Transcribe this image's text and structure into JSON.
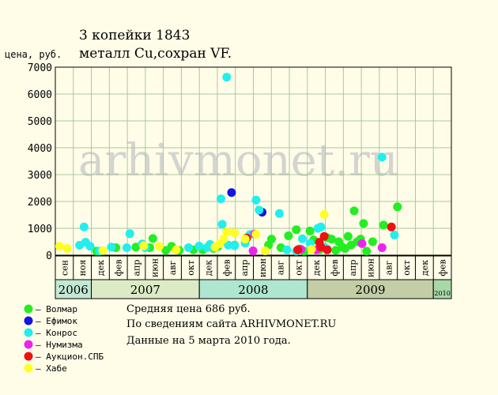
{
  "header": {
    "title_line1": "3 копейки 1843",
    "title_line2": "металл Cu,сохран VF.",
    "ylabel": "цена, руб."
  },
  "watermark": "arhivmonet.ru",
  "info": {
    "avg": "Средняя цена 686 руб.",
    "source": "По сведениям сайта ARHIVMONET.RU",
    "date": "Данные на 5 марта 2010 года."
  },
  "colors": {
    "Волмар": "#22ee22",
    "Ефимок": "#1414e6",
    "Конрос": "#22eeee",
    "Нумизма": "#ee22ee",
    "Аукцион.СПБ": "#ee1111",
    "Хабе": "#ffff22"
  },
  "chart_data": {
    "type": "scatter",
    "ylim": [
      0,
      7000
    ],
    "yticks": [
      0,
      1000,
      2000,
      3000,
      4000,
      5000,
      6000,
      7000
    ],
    "grid": true,
    "x_axis": {
      "months": [
        "сен",
        "ноя",
        "дек",
        "фев",
        "апр",
        "июн",
        "авг",
        "окт",
        "дек",
        "фев",
        "апр",
        "июн",
        "авг",
        "окт",
        "дек",
        "фев",
        "апр",
        "июн",
        "авг",
        "окт",
        "дек",
        "фев"
      ],
      "years": [
        {
          "label": "2006",
          "color": "#c3e8d3"
        },
        {
          "label": "2007",
          "color": "#dcebc6"
        },
        {
          "label": "2008",
          "color": "#aee6cf"
        },
        {
          "label": "2009",
          "color": "#c3cea6"
        },
        {
          "label": "2010",
          "color": "#a8d8a8"
        }
      ]
    },
    "series": [
      {
        "name": "Волмар",
        "points": [
          [
            "2007-01-15",
            150
          ],
          [
            "2007-03-20",
            280
          ],
          [
            "2007-05-25",
            300
          ],
          [
            "2007-07-10",
            280
          ],
          [
            "2007-07-20",
            620
          ],
          [
            "2007-09-01",
            180
          ],
          [
            "2007-09-20",
            330
          ],
          [
            "2007-10-15",
            180
          ],
          [
            "2007-12-01",
            200
          ],
          [
            "2008-01-01",
            200
          ],
          [
            "2008-02-05",
            250
          ],
          [
            "2008-02-20",
            320
          ],
          [
            "2008-04-15",
            370
          ],
          [
            "2008-08-05",
            380
          ],
          [
            "2008-08-15",
            600
          ],
          [
            "2008-09-15",
            280
          ],
          [
            "2008-10-10",
            720
          ],
          [
            "2008-11-05",
            950
          ],
          [
            "2008-11-15",
            230
          ],
          [
            "2008-12-01",
            150
          ],
          [
            "2008-12-20",
            900
          ],
          [
            "2009-01-01",
            570
          ],
          [
            "2009-01-20",
            200
          ],
          [
            "2009-02-15",
            650
          ],
          [
            "2009-03-01",
            600
          ],
          [
            "2009-03-15",
            180
          ],
          [
            "2009-03-25",
            500
          ],
          [
            "2009-04-05",
            300
          ],
          [
            "2009-04-15",
            250
          ],
          [
            "2009-04-25",
            700
          ],
          [
            "2009-05-05",
            380
          ],
          [
            "2009-05-15",
            1650
          ],
          [
            "2009-05-25",
            500
          ],
          [
            "2009-06-05",
            600
          ],
          [
            "2009-06-15",
            1180
          ],
          [
            "2009-06-25",
            150
          ],
          [
            "2009-07-15",
            500
          ],
          [
            "2009-08-20",
            1120
          ],
          [
            "2009-10-05",
            1800
          ]
        ]
      },
      {
        "name": "Ефимок",
        "points": [
          [
            "2008-04-05",
            2330
          ],
          [
            "2008-07-15",
            1600
          ]
        ]
      },
      {
        "name": "Конрос",
        "points": [
          [
            "2006-11-20",
            370
          ],
          [
            "2006-12-05",
            1050
          ],
          [
            "2006-12-10",
            480
          ],
          [
            "2006-12-25",
            330
          ],
          [
            "2007-01-25",
            150
          ],
          [
            "2007-03-05",
            300
          ],
          [
            "2007-04-25",
            280
          ],
          [
            "2007-05-05",
            800
          ],
          [
            "2007-06-15",
            420
          ],
          [
            "2007-06-25",
            280
          ],
          [
            "2007-11-15",
            280
          ],
          [
            "2007-12-20",
            340
          ],
          [
            "2008-01-15",
            280
          ],
          [
            "2008-01-25",
            400
          ],
          [
            "2008-02-05",
            300
          ],
          [
            "2008-03-01",
            2100
          ],
          [
            "2008-03-05",
            1150
          ],
          [
            "2008-03-20",
            6630
          ],
          [
            "2008-03-25",
            380
          ],
          [
            "2008-04-15",
            350
          ],
          [
            "2008-05-20",
            450
          ],
          [
            "2008-06-05",
            770
          ],
          [
            "2008-06-25",
            2050
          ],
          [
            "2008-07-05",
            1680
          ],
          [
            "2008-09-10",
            1550
          ],
          [
            "2008-10-05",
            200
          ],
          [
            "2008-11-05",
            150
          ],
          [
            "2008-11-25",
            610
          ],
          [
            "2008-12-20",
            440
          ],
          [
            "2009-01-15",
            1000
          ],
          [
            "2009-01-25",
            1050
          ],
          [
            "2009-02-05",
            300
          ],
          [
            "2009-02-15",
            230
          ],
          [
            "2009-08-15",
            3650
          ],
          [
            "2009-09-25",
            750
          ]
        ]
      },
      {
        "name": "Нумизма",
        "points": [
          [
            "2008-06-15",
            160
          ],
          [
            "2008-06-20",
            790
          ],
          [
            "2008-11-20",
            220
          ],
          [
            "2009-01-10",
            200
          ],
          [
            "2009-06-10",
            430
          ],
          [
            "2009-08-15",
            280
          ]
        ]
      },
      {
        "name": "Аукцион.СПБ",
        "points": [
          [
            "2008-05-25",
            640
          ],
          [
            "2008-11-10",
            200
          ],
          [
            "2009-01-20",
            480
          ],
          [
            "2009-01-25",
            300
          ],
          [
            "2009-02-05",
            700
          ],
          [
            "2009-02-15",
            200
          ],
          [
            "2009-09-15",
            1050
          ]
        ]
      },
      {
        "name": "Хабе",
        "points": [
          [
            "2006-09-15",
            330
          ],
          [
            "2006-10-10",
            250
          ],
          [
            "2007-02-05",
            170
          ],
          [
            "2007-06-20",
            350
          ],
          [
            "2007-08-10",
            330
          ],
          [
            "2007-10-05",
            200
          ],
          [
            "2008-02-10",
            300
          ],
          [
            "2008-02-25",
            420
          ],
          [
            "2008-03-10",
            600
          ],
          [
            "2008-03-20",
            880
          ],
          [
            "2008-04-15",
            830
          ],
          [
            "2008-05-20",
            600
          ],
          [
            "2008-06-25",
            780
          ],
          [
            "2008-07-25",
            160
          ],
          [
            "2008-12-25",
            220
          ],
          [
            "2009-02-05",
            1520
          ]
        ]
      }
    ]
  }
}
